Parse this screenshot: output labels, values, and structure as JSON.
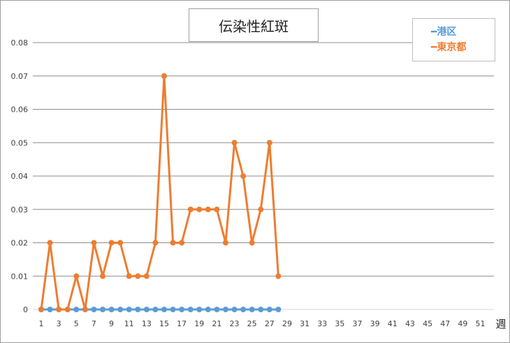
{
  "chart_data": {
    "type": "line",
    "title": "伝染性紅斑",
    "xlabel": "週",
    "ylabel": "",
    "x_ticks": [
      1,
      3,
      5,
      7,
      9,
      11,
      13,
      15,
      17,
      19,
      21,
      23,
      25,
      27,
      29,
      31,
      33,
      35,
      37,
      39,
      41,
      43,
      45,
      47,
      49,
      51
    ],
    "x_range": [
      1,
      52
    ],
    "ylim": [
      0,
      0.08
    ],
    "y_ticks": [
      0,
      0.01,
      0.02,
      0.03,
      0.04,
      0.05,
      0.06,
      0.07,
      0.08
    ],
    "grid": true,
    "legend_position": "top-right",
    "series": [
      {
        "name": "港区",
        "color": "#5b9bd5",
        "x": [
          1,
          2,
          3,
          4,
          5,
          6,
          7,
          8,
          9,
          10,
          11,
          12,
          13,
          14,
          15,
          16,
          17,
          18,
          19,
          20,
          21,
          22,
          23,
          24,
          25,
          26,
          27,
          28
        ],
        "values": [
          0,
          0,
          0,
          0,
          0,
          0,
          0,
          0,
          0,
          0,
          0,
          0,
          0,
          0,
          0,
          0,
          0,
          0,
          0,
          0,
          0,
          0,
          0,
          0,
          0,
          0,
          0,
          0
        ]
      },
      {
        "name": "東京都",
        "color": "#ed7d31",
        "x": [
          1,
          2,
          3,
          4,
          5,
          6,
          7,
          8,
          9,
          10,
          11,
          12,
          13,
          14,
          15,
          16,
          17,
          18,
          19,
          20,
          21,
          22,
          23,
          24,
          25,
          26,
          27,
          28
        ],
        "values": [
          0,
          0.02,
          0,
          0,
          0.01,
          0,
          0.02,
          0.01,
          0.02,
          0.02,
          0.01,
          0.01,
          0.01,
          0.02,
          0.07,
          0.02,
          0.02,
          0.03,
          0.03,
          0.03,
          0.03,
          0.02,
          0.05,
          0.04,
          0.02,
          0.03,
          0.05,
          0.01
        ]
      }
    ]
  },
  "legend": {
    "items": [
      {
        "label": "━港区",
        "color": "#5b9bd5"
      },
      {
        "label": "━東京都",
        "color": "#ed7d31"
      }
    ]
  }
}
